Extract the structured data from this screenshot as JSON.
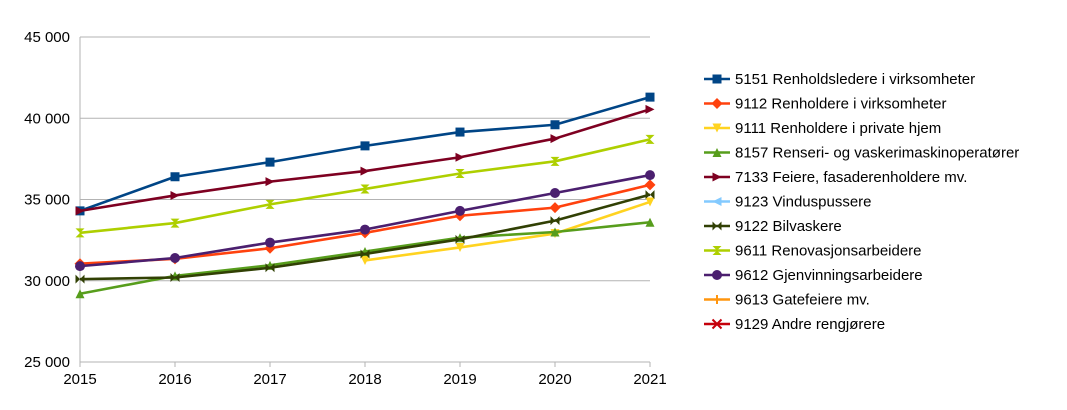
{
  "chart_data": {
    "type": "line",
    "title": "",
    "xlabel": "",
    "ylabel": "",
    "x": [
      "2015",
      "2016",
      "2017",
      "2018",
      "2019",
      "2020",
      "2021"
    ],
    "ylim": [
      25000,
      45000
    ],
    "yticks": [
      25000,
      30000,
      35000,
      40000,
      45000
    ],
    "ytick_labels": [
      "25 000",
      "30 000",
      "35 000",
      "40 000",
      "45 000"
    ],
    "grid": "horizontal",
    "legend_position": "right",
    "series": [
      {
        "name": "5151 Renholdsledere i virksomheter",
        "color": "#004586",
        "marker": "square",
        "values": [
          34300,
          36400,
          37300,
          38300,
          39150,
          39600,
          41300
        ]
      },
      {
        "name": "9112 Renholdere i virksomheter",
        "color": "#ff420e",
        "marker": "diamond",
        "values": [
          31050,
          31350,
          32000,
          32950,
          34000,
          34500,
          35900
        ]
      },
      {
        "name": "9111 Renholdere i private hjem",
        "color": "#ffd320",
        "marker": "triangle-down",
        "values": [
          null,
          null,
          null,
          31250,
          32050,
          32900,
          34850
        ]
      },
      {
        "name": "8157 Renseri- og vaskerimaskinoperatører",
        "color": "#579d1c",
        "marker": "triangle-up",
        "values": [
          29200,
          30300,
          30950,
          31800,
          32650,
          33000,
          33600
        ]
      },
      {
        "name": "7133 Feiere, fasaderenholdere mv.",
        "color": "#7e0021",
        "marker": "triangle-right",
        "values": [
          34300,
          35250,
          36100,
          36750,
          37600,
          38750,
          40550
        ]
      },
      {
        "name": "9123 Vinduspussere",
        "color": "#83caff",
        "marker": "triangle-left",
        "values": [
          null,
          null,
          null,
          null,
          null,
          null,
          null
        ]
      },
      {
        "name": "9122 Bilvaskere",
        "color": "#314004",
        "marker": "bowtie",
        "values": [
          30100,
          30200,
          30800,
          31650,
          32550,
          33700,
          35300
        ]
      },
      {
        "name": "9611 Renovasjonsarbeidere",
        "color": "#aecf00",
        "marker": "hourglass",
        "values": [
          32950,
          33550,
          34700,
          35650,
          36600,
          37350,
          38700
        ]
      },
      {
        "name": "9612 Gjenvinningsarbeidere",
        "color": "#4b1f6f",
        "marker": "circle",
        "values": [
          30900,
          31400,
          32350,
          33150,
          34300,
          35400,
          36500
        ]
      },
      {
        "name": "9613 Gatefeiere mv.",
        "color": "#ff950e",
        "marker": "plus",
        "values": [
          null,
          null,
          null,
          null,
          null,
          null,
          null
        ]
      },
      {
        "name": "9129 Andre rengjørere",
        "color": "#c5000b",
        "marker": "x",
        "values": [
          null,
          null,
          null,
          null,
          null,
          null,
          null
        ]
      }
    ]
  }
}
